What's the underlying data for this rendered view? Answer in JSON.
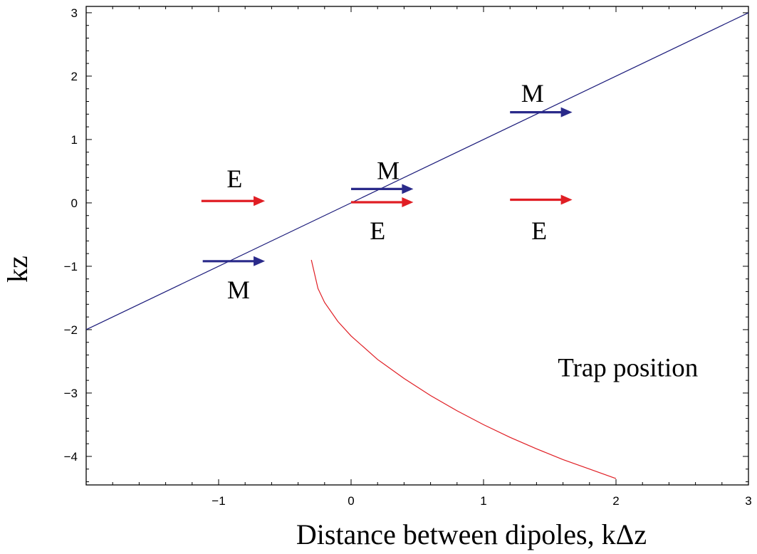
{
  "chart_data": {
    "type": "line",
    "xlabel": "Distance between  dipoles, kΔz",
    "ylabel": "kz",
    "xlim": [
      -2,
      3
    ],
    "ylim": [
      -4.45,
      3.1
    ],
    "x_ticks": [
      {
        "value": -1,
        "label": "−1"
      },
      {
        "value": 0,
        "label": "0"
      },
      {
        "value": 1,
        "label": "1"
      },
      {
        "value": 2,
        "label": "2"
      },
      {
        "value": 3,
        "label": "3"
      }
    ],
    "y_ticks": [
      {
        "value": 3,
        "label": "3"
      },
      {
        "value": 2,
        "label": "2"
      },
      {
        "value": 1,
        "label": "1"
      },
      {
        "value": 0,
        "label": "0"
      },
      {
        "value": -1,
        "label": "−1"
      },
      {
        "value": -2,
        "label": "−2"
      },
      {
        "value": -3,
        "label": "−3"
      },
      {
        "value": -4,
        "label": "−4"
      }
    ],
    "grid": false,
    "series": [
      {
        "color": "#1a1a7a",
        "x": [
          -2,
          3
        ],
        "y": [
          -2,
          3
        ]
      },
      {
        "color": "#e01e24",
        "x": [
          -0.3,
          -0.25,
          -0.2,
          -0.1,
          0.0,
          0.2,
          0.4,
          0.6,
          0.8,
          1.0,
          1.2,
          1.4,
          1.6,
          1.8,
          2.0
        ],
        "y": [
          -0.9,
          -1.35,
          -1.57,
          -1.87,
          -2.1,
          -2.47,
          -2.77,
          -3.04,
          -3.28,
          -3.5,
          -3.7,
          -3.88,
          -4.05,
          -4.2,
          -4.35
        ]
      }
    ],
    "arrows": [
      {
        "color": "#e01e24",
        "x1": -1.13,
        "x2": -0.65,
        "y": 0.03,
        "label": "E",
        "label_x": -0.88,
        "label_y": 0.38
      },
      {
        "color": "#2a2a8a",
        "x1": -1.12,
        "x2": -0.65,
        "y": -0.92,
        "label": "M",
        "label_x": -0.85,
        "label_y": -1.37
      },
      {
        "color": "#2a2a8a",
        "x1": 0.0,
        "x2": 0.47,
        "y": 0.22,
        "label": "M",
        "label_x": 0.28,
        "label_y": 0.51
      },
      {
        "color": "#e01e24",
        "x1": 0.0,
        "x2": 0.47,
        "y": 0.01,
        "label": "E",
        "label_x": 0.2,
        "label_y": -0.44
      },
      {
        "color": "#2a2a8a",
        "x1": 1.2,
        "x2": 1.67,
        "y": 1.43,
        "label": "M",
        "label_x": 1.37,
        "label_y": 1.73
      },
      {
        "color": "#e01e24",
        "x1": 1.2,
        "x2": 1.67,
        "y": 0.05,
        "label": "E",
        "label_x": 1.42,
        "label_y": -0.44
      }
    ],
    "annotations": [
      {
        "text": "Trap position",
        "x": 2.09,
        "y": -2.6
      }
    ]
  }
}
